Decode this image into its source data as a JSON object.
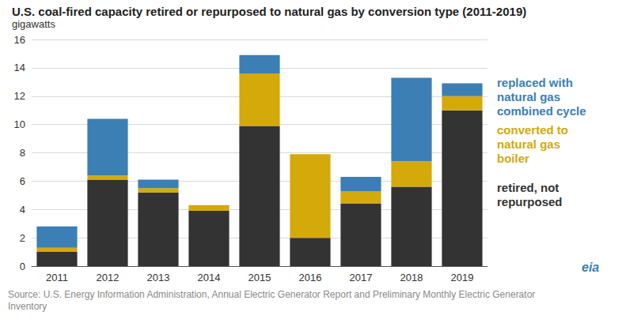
{
  "chart_data": {
    "type": "bar",
    "title": "U.S. coal-fired capacity retired or repurposed to natural gas by conversion type (2011-2019)",
    "subtitle": "gigawatts",
    "source": "Source: U.S. Energy Information Administration, Annual Electric Generator Report and Preliminary Monthly Electric Generator Inventory",
    "logo": "eia",
    "categories": [
      "2011",
      "2012",
      "2013",
      "2014",
      "2015",
      "2016",
      "2017",
      "2018",
      "2019"
    ],
    "stacked": true,
    "grid": true,
    "ylim": [
      0,
      16
    ],
    "yticks": [
      0,
      2,
      4,
      6,
      8,
      10,
      12,
      14,
      16
    ],
    "series": [
      {
        "name": "retired, not repurposed",
        "color": "#333333",
        "values": [
          1.0,
          6.1,
          5.2,
          3.9,
          9.9,
          2.0,
          4.4,
          5.6,
          11.0
        ]
      },
      {
        "name": "converted to natural gas boiler",
        "color": "#d4a90a",
        "values": [
          0.3,
          0.3,
          0.3,
          0.4,
          3.7,
          5.9,
          0.9,
          1.8,
          1.0
        ]
      },
      {
        "name": "replaced with natural gas combined cycle",
        "color": "#3b7fb4",
        "values": [
          1.5,
          4.0,
          0.6,
          0,
          1.3,
          0,
          1.0,
          5.9,
          0.9
        ]
      }
    ]
  }
}
